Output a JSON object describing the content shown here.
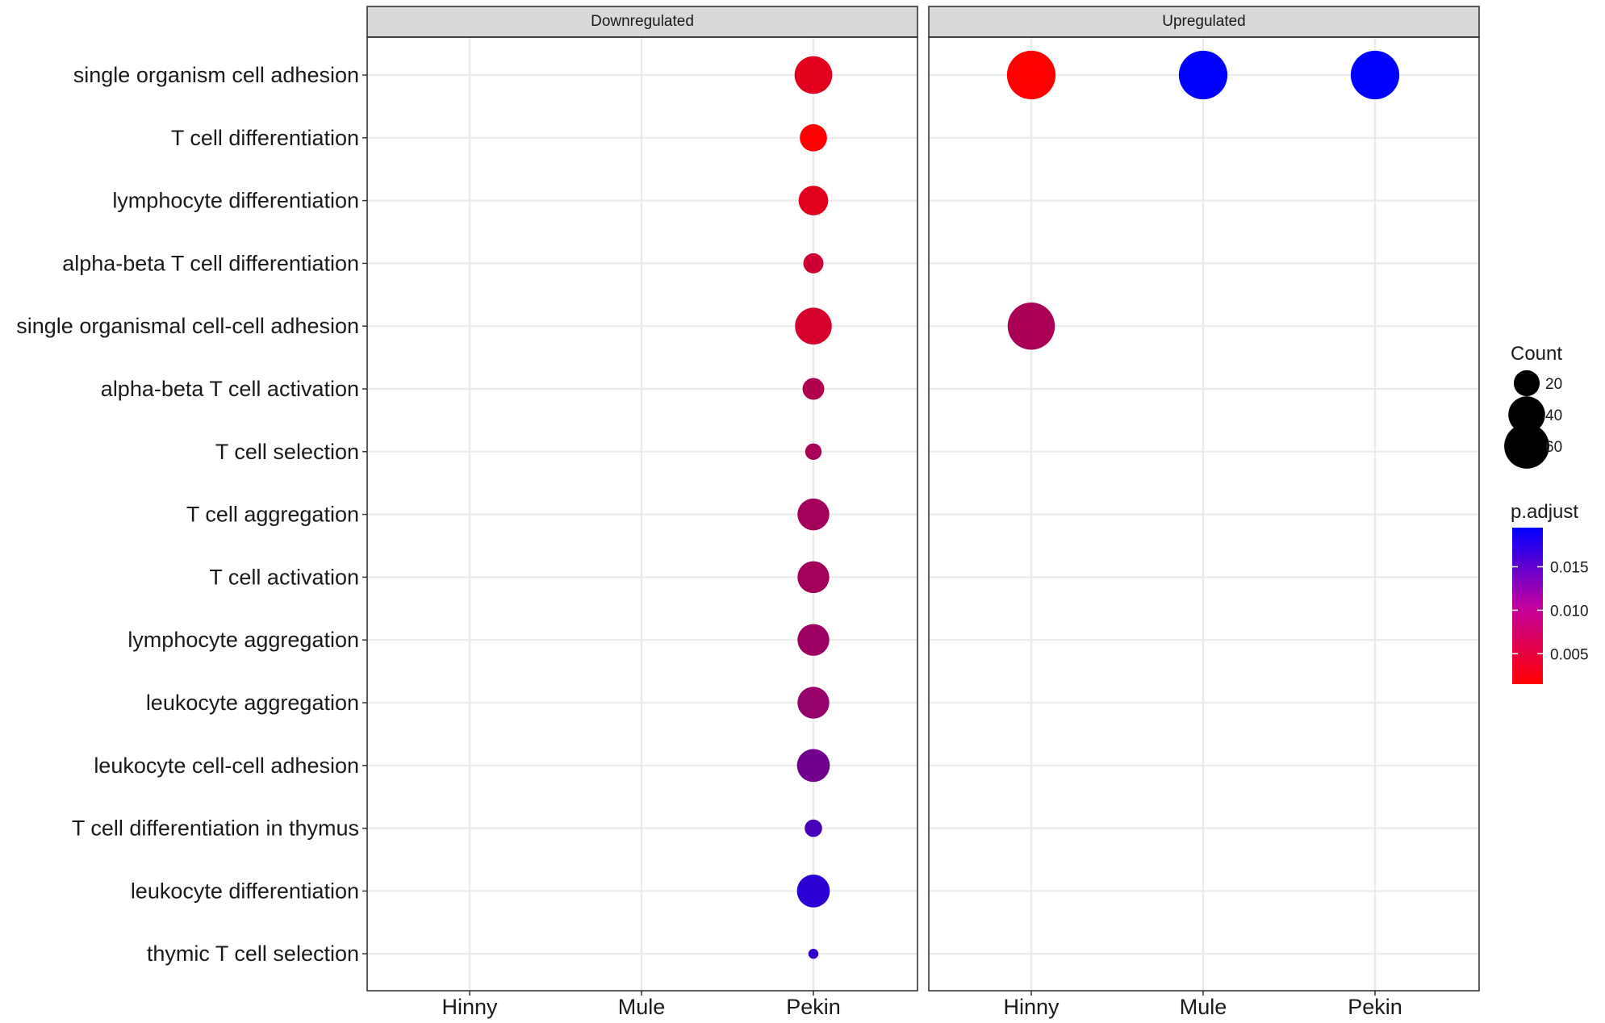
{
  "chart_data": {
    "type": "scatter",
    "facets": [
      "Downregulated",
      "Upregulated"
    ],
    "x_categories": [
      "Hinny",
      "Mule",
      "Pekin"
    ],
    "y_categories": [
      "single organism cell adhesion",
      "T cell differentiation",
      "lymphocyte differentiation",
      "alpha-beta T cell differentiation",
      "single organismal cell-cell adhesion",
      "alpha-beta T cell activation",
      "T cell selection",
      "T cell aggregation",
      "T cell activation",
      "lymphocyte aggregation",
      "leukocyte aggregation",
      "leukocyte cell-cell adhesion",
      "T cell differentiation in thymus",
      "leukocyte differentiation",
      "thymic T cell selection"
    ],
    "points": [
      {
        "facet": "Downregulated",
        "x": "Pekin",
        "y": "single organism cell adhesion",
        "count": 42,
        "p_adjust": 0.0035
      },
      {
        "facet": "Downregulated",
        "x": "Pekin",
        "y": "T cell differentiation",
        "count": 22,
        "p_adjust": 0.0015
      },
      {
        "facet": "Downregulated",
        "x": "Pekin",
        "y": "lymphocyte differentiation",
        "count": 26,
        "p_adjust": 0.0035
      },
      {
        "facet": "Downregulated",
        "x": "Pekin",
        "y": "alpha-beta T cell differentiation",
        "count": 12,
        "p_adjust": 0.005
      },
      {
        "facet": "Downregulated",
        "x": "Pekin",
        "y": "single organismal cell-cell adhesion",
        "count": 40,
        "p_adjust": 0.0045
      },
      {
        "facet": "Downregulated",
        "x": "Pekin",
        "y": "alpha-beta T cell activation",
        "count": 14,
        "p_adjust": 0.007
      },
      {
        "facet": "Downregulated",
        "x": "Pekin",
        "y": "T cell selection",
        "count": 8,
        "p_adjust": 0.0075
      },
      {
        "facet": "Downregulated",
        "x": "Pekin",
        "y": "T cell aggregation",
        "count": 30,
        "p_adjust": 0.008
      },
      {
        "facet": "Downregulated",
        "x": "Pekin",
        "y": "T cell activation",
        "count": 30,
        "p_adjust": 0.008
      },
      {
        "facet": "Downregulated",
        "x": "Pekin",
        "y": "lymphocyte aggregation",
        "count": 30,
        "p_adjust": 0.0085
      },
      {
        "facet": "Downregulated",
        "x": "Pekin",
        "y": "leukocyte aggregation",
        "count": 30,
        "p_adjust": 0.009
      },
      {
        "facet": "Downregulated",
        "x": "Pekin",
        "y": "leukocyte cell-cell adhesion",
        "count": 32,
        "p_adjust": 0.0115
      },
      {
        "facet": "Downregulated",
        "x": "Pekin",
        "y": "T cell differentiation in thymus",
        "count": 9,
        "p_adjust": 0.0145
      },
      {
        "facet": "Downregulated",
        "x": "Pekin",
        "y": "leukocyte differentiation",
        "count": 32,
        "p_adjust": 0.0165
      },
      {
        "facet": "Downregulated",
        "x": "Pekin",
        "y": "thymic T cell selection",
        "count": 3,
        "p_adjust": 0.016
      },
      {
        "facet": "Upregulated",
        "x": "Hinny",
        "y": "single organism cell adhesion",
        "count": 70,
        "p_adjust": 0.0015
      },
      {
        "facet": "Upregulated",
        "x": "Mule",
        "y": "single organism cell adhesion",
        "count": 70,
        "p_adjust": 0.0195
      },
      {
        "facet": "Upregulated",
        "x": "Pekin",
        "y": "single organism cell adhesion",
        "count": 70,
        "p_adjust": 0.0195
      },
      {
        "facet": "Upregulated",
        "x": "Hinny",
        "y": "single organismal cell-cell adhesion",
        "count": 66,
        "p_adjust": 0.0075
      }
    ],
    "legend_count": {
      "title": "Count",
      "breaks": [
        20,
        40,
        60
      ],
      "labels": [
        "20",
        "40",
        "60"
      ]
    },
    "legend_color": {
      "title": "p.adjust",
      "low_color": "#ff0000",
      "high_color": "#0000ff",
      "range": [
        0.0015,
        0.0195
      ],
      "breaks": [
        0.005,
        0.01,
        0.015
      ],
      "labels": [
        "0.005",
        "0.010",
        "0.015"
      ]
    },
    "grid": true,
    "legend_position": "right"
  }
}
